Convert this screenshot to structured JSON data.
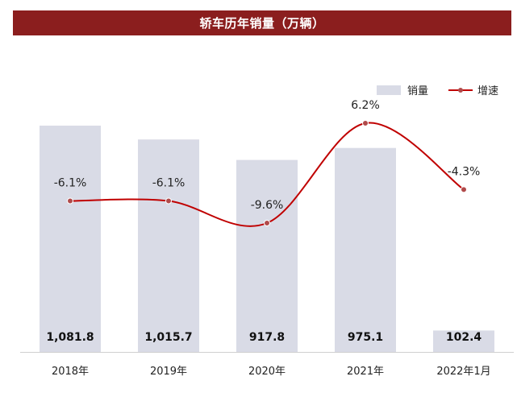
{
  "colors": {
    "header_bg": "#8b1e1e",
    "bar": "#d9dbe6",
    "line": "#c00000",
    "marker": "#b04a4a",
    "axis": "#cfcfcf"
  },
  "chart_data": {
    "type": "bar",
    "title": "轿车历年销量（万辆）",
    "categories": [
      "2018年",
      "2019年",
      "2020年",
      "2021年",
      "2022年1月"
    ],
    "series": [
      {
        "name": "销量",
        "type": "bar",
        "values": [
          1081.8,
          1015.7,
          917.8,
          975.1,
          102.4
        ],
        "labels": [
          "1,081.8",
          "1,015.7",
          "917.8",
          "975.1",
          "102.4"
        ]
      },
      {
        "name": "增速",
        "type": "line",
        "values": [
          -6.1,
          -6.1,
          -9.6,
          6.2,
          -4.3
        ],
        "labels": [
          "-6.1%",
          "-6.1%",
          "-9.6%",
          "6.2%",
          "-4.3%"
        ]
      }
    ],
    "legend": "top-right",
    "grid": false
  }
}
